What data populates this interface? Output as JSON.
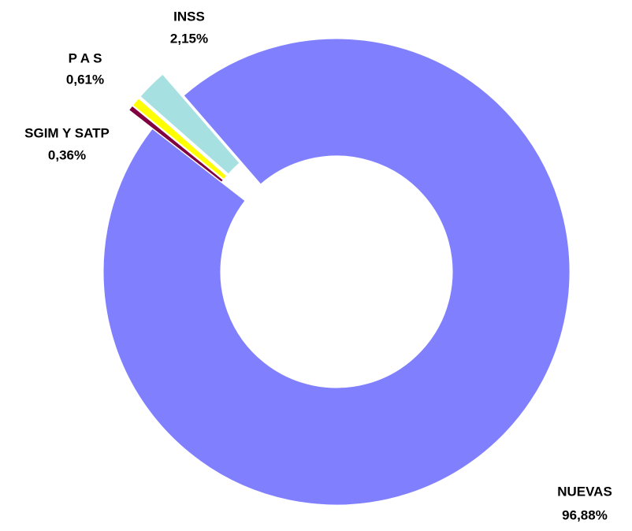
{
  "chart_data": {
    "type": "donut",
    "categories": [
      "NUEVAS",
      "SGIM Y SATP",
      "P A S",
      "INSS"
    ],
    "values": [
      96.88,
      0.36,
      0.61,
      2.15
    ],
    "value_labels": [
      "96,88%",
      "0,36%",
      "0,61%",
      "2,15%"
    ],
    "colors": [
      "#8080ff",
      "#800040",
      "#ffff00",
      "#a6e0e0"
    ]
  }
}
